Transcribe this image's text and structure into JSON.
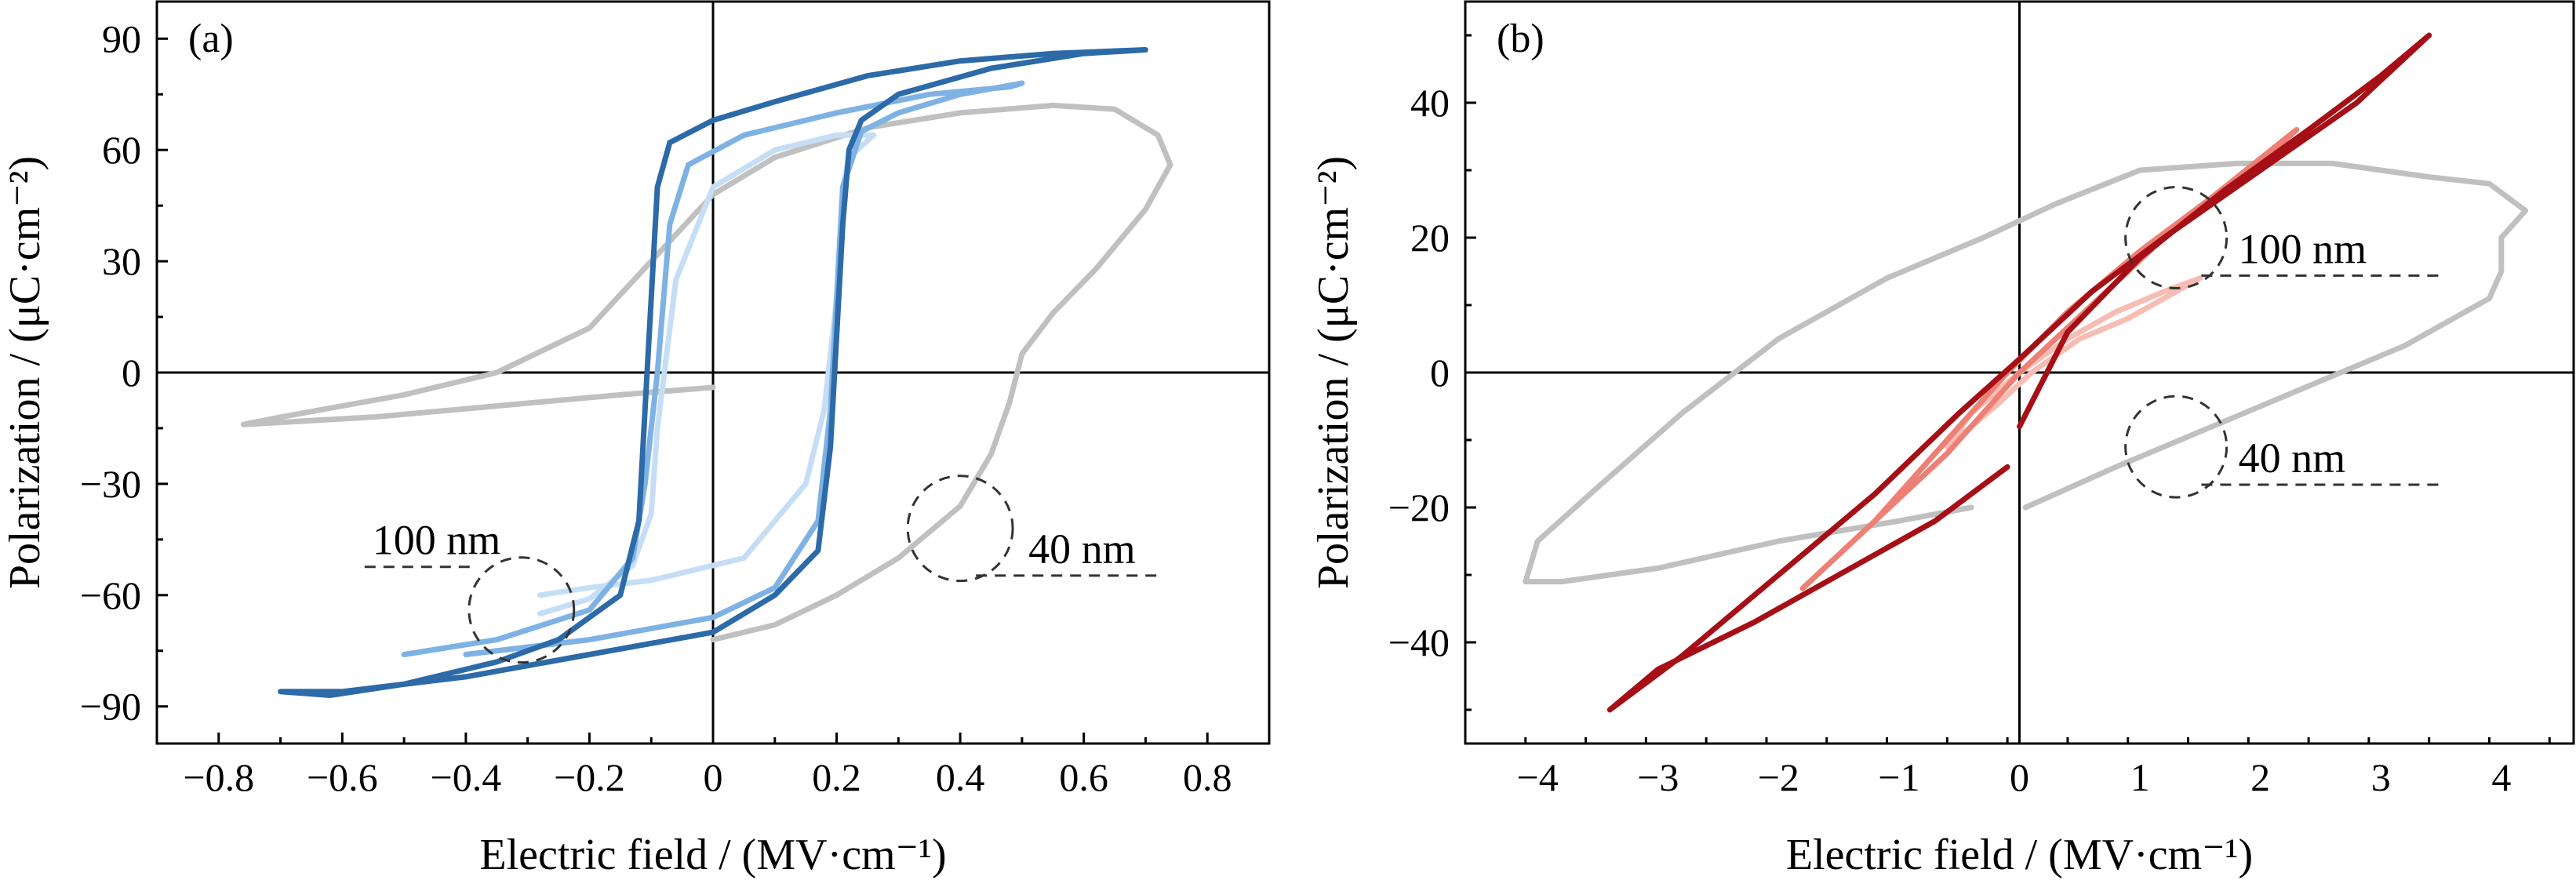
{
  "chart_data": [
    {
      "type": "line",
      "panel_label": "(a)",
      "xlabel": "Electric field / (MV·cm⁻¹)",
      "ylabel": "Polarization / (μC·cm⁻²)",
      "xlim": [
        -0.9,
        0.9
      ],
      "ylim": [
        -100,
        100
      ],
      "x_ticks": [
        -0.8,
        -0.6,
        -0.4,
        -0.2,
        0,
        0.2,
        0.4,
        0.6,
        0.8
      ],
      "x_tick_labels": [
        "−0.8",
        "−0.6",
        "−0.4",
        "−0.2",
        "0",
        "0.2",
        "0.4",
        "0.6",
        "0.8"
      ],
      "y_ticks": [
        -90,
        -60,
        -30,
        0,
        30,
        60,
        90
      ],
      "y_tick_labels": [
        "−90",
        "−60",
        "−30",
        "0",
        "30",
        "60",
        "90"
      ],
      "zero_lines": true,
      "annotations": [
        {
          "text": "100 nm",
          "circle_center": [
            -0.31,
            -64
          ],
          "circle_radius_data_x": 0.085
        },
        {
          "text": "40 nm",
          "circle_center": [
            0.4,
            -42
          ],
          "circle_radius_data_x": 0.085
        }
      ],
      "series": [
        {
          "color": "#c0c0c0",
          "points": [
            [
              0.0,
              -4
            ],
            [
              -0.15,
              -6
            ],
            [
              -0.35,
              -9
            ],
            [
              -0.55,
              -12
            ],
            [
              -0.76,
              -14
            ],
            [
              -0.7,
              -12
            ],
            [
              -0.5,
              -6
            ],
            [
              -0.35,
              0
            ],
            [
              -0.2,
              12
            ],
            [
              -0.1,
              30
            ],
            [
              0.0,
              48
            ],
            [
              0.1,
              58
            ],
            [
              0.25,
              66
            ],
            [
              0.4,
              70
            ],
            [
              0.55,
              72
            ],
            [
              0.65,
              71
            ],
            [
              0.72,
              64
            ],
            [
              0.74,
              56
            ],
            [
              0.7,
              44
            ],
            [
              0.62,
              28
            ],
            [
              0.55,
              16
            ],
            [
              0.5,
              5
            ],
            [
              0.48,
              -8
            ],
            [
              0.45,
              -22
            ],
            [
              0.4,
              -36
            ],
            [
              0.3,
              -50
            ],
            [
              0.2,
              -60
            ],
            [
              0.1,
              -68
            ],
            [
              0.0,
              -72
            ]
          ]
        },
        {
          "color": "#c6def5",
          "points": [
            [
              -0.28,
              -65
            ],
            [
              -0.2,
              -61
            ],
            [
              -0.13,
              -52
            ],
            [
              -0.1,
              -38
            ],
            [
              -0.09,
              -15
            ],
            [
              -0.06,
              25
            ],
            [
              0.0,
              50
            ],
            [
              0.1,
              60
            ],
            [
              0.2,
              64
            ],
            [
              0.26,
              64
            ],
            [
              0.22,
              58
            ],
            [
              0.21,
              50
            ],
            [
              0.2,
              20
            ],
            [
              0.18,
              -10
            ],
            [
              0.15,
              -30
            ],
            [
              0.05,
              -50
            ],
            [
              -0.1,
              -56
            ],
            [
              -0.2,
              -58
            ],
            [
              -0.28,
              -60
            ]
          ]
        },
        {
          "color": "#7eb2e4",
          "points": [
            [
              -0.5,
              -76
            ],
            [
              -0.35,
              -72
            ],
            [
              -0.2,
              -64
            ],
            [
              -0.13,
              -50
            ],
            [
              -0.11,
              -30
            ],
            [
              -0.09,
              0
            ],
            [
              -0.07,
              40
            ],
            [
              -0.04,
              56
            ],
            [
              0.05,
              64
            ],
            [
              0.2,
              70
            ],
            [
              0.35,
              75
            ],
            [
              0.48,
              77
            ],
            [
              0.5,
              78
            ],
            [
              0.4,
              75
            ],
            [
              0.3,
              70
            ],
            [
              0.24,
              65
            ],
            [
              0.21,
              50
            ],
            [
              0.2,
              20
            ],
            [
              0.19,
              -10
            ],
            [
              0.17,
              -40
            ],
            [
              0.1,
              -58
            ],
            [
              0.0,
              -66
            ],
            [
              -0.2,
              -72
            ],
            [
              -0.4,
              -76
            ]
          ]
        },
        {
          "color": "#2c6aa8",
          "points": [
            [
              -0.7,
              -86
            ],
            [
              -0.62,
              -87
            ],
            [
              -0.5,
              -84
            ],
            [
              -0.35,
              -78
            ],
            [
              -0.25,
              -72
            ],
            [
              -0.15,
              -60
            ],
            [
              -0.12,
              -40
            ],
            [
              -0.11,
              -10
            ],
            [
              -0.1,
              20
            ],
            [
              -0.09,
              50
            ],
            [
              -0.07,
              62
            ],
            [
              0.0,
              68
            ],
            [
              0.1,
              73
            ],
            [
              0.25,
              80
            ],
            [
              0.4,
              84
            ],
            [
              0.55,
              86
            ],
            [
              0.7,
              87
            ],
            [
              0.6,
              86
            ],
            [
              0.45,
              82
            ],
            [
              0.3,
              75
            ],
            [
              0.24,
              68
            ],
            [
              0.22,
              60
            ],
            [
              0.21,
              40
            ],
            [
              0.2,
              10
            ],
            [
              0.19,
              -20
            ],
            [
              0.17,
              -48
            ],
            [
              0.1,
              -60
            ],
            [
              0.0,
              -70
            ],
            [
              -0.2,
              -76
            ],
            [
              -0.4,
              -82
            ],
            [
              -0.6,
              -86
            ],
            [
              -0.7,
              -86
            ]
          ]
        }
      ]
    },
    {
      "type": "line",
      "panel_label": "(b)",
      "xlabel": "Electric field / (MV·cm⁻¹)",
      "ylabel": "Polarization / (μC·cm⁻²)",
      "xlim": [
        -4.6,
        4.6
      ],
      "ylim": [
        -55,
        55
      ],
      "x_ticks": [
        -4,
        -3,
        -2,
        -1,
        0,
        1,
        2,
        3,
        4
      ],
      "x_tick_labels": [
        "−4",
        "−3",
        "−2",
        "−1",
        "0",
        "1",
        "2",
        "3",
        "4"
      ],
      "y_ticks": [
        -40,
        -20,
        0,
        20,
        40
      ],
      "y_tick_labels": [
        "−40",
        "−20",
        "0",
        "20",
        "40"
      ],
      "zero_lines": true,
      "annotations": [
        {
          "text": "100 nm",
          "circle_center": [
            1.3,
            20
          ],
          "circle_radius_data_x": 0.42
        },
        {
          "text": "40 nm",
          "circle_center": [
            1.3,
            -11
          ],
          "circle_radius_data_x": 0.42
        }
      ],
      "series": [
        {
          "color": "#c0c0c0",
          "points": [
            [
              0.05,
              -20
            ],
            [
              0.8,
              -14
            ],
            [
              1.6,
              -8
            ],
            [
              2.4,
              -2
            ],
            [
              3.2,
              4
            ],
            [
              3.9,
              11
            ],
            [
              4.0,
              15
            ],
            [
              4.0,
              20
            ],
            [
              4.1,
              22
            ],
            [
              4.2,
              24
            ],
            [
              3.9,
              28
            ],
            [
              3.4,
              29
            ],
            [
              2.6,
              31
            ],
            [
              1.8,
              31
            ],
            [
              1.0,
              30
            ],
            [
              0.3,
              25
            ],
            [
              -0.3,
              20
            ],
            [
              -1.1,
              14
            ],
            [
              -2.0,
              5
            ],
            [
              -2.8,
              -6
            ],
            [
              -3.5,
              -17
            ],
            [
              -4.0,
              -25
            ],
            [
              -4.1,
              -31
            ],
            [
              -3.8,
              -31
            ],
            [
              -3.0,
              -29
            ],
            [
              -2.0,
              -25
            ],
            [
              -1.0,
              -22
            ],
            [
              -0.4,
              -20
            ]
          ]
        },
        {
          "color": "#f7bcb3",
          "points": [
            [
              -0.6,
              -11
            ],
            [
              -0.2,
              -5
            ],
            [
              0.1,
              0
            ],
            [
              0.5,
              5
            ],
            [
              0.9,
              8
            ],
            [
              1.3,
              12
            ],
            [
              1.5,
              14
            ],
            [
              1.2,
              12
            ],
            [
              0.8,
              9
            ],
            [
              0.4,
              5
            ],
            [
              0.0,
              0
            ],
            [
              -0.4,
              -6
            ],
            [
              -0.6,
              -11
            ]
          ]
        },
        {
          "color": "#ee7f74",
          "points": [
            [
              -1.8,
              -32
            ],
            [
              -1.2,
              -22
            ],
            [
              -0.6,
              -10
            ],
            [
              -0.1,
              0
            ],
            [
              0.4,
              9
            ],
            [
              1.0,
              18
            ],
            [
              1.6,
              26
            ],
            [
              2.3,
              36
            ],
            [
              1.8,
              28
            ],
            [
              1.2,
              20
            ],
            [
              0.6,
              10
            ],
            [
              0.0,
              0
            ],
            [
              -0.6,
              -12
            ],
            [
              -1.2,
              -22
            ],
            [
              -1.8,
              -32
            ]
          ]
        },
        {
          "color": "#a50f15",
          "points": [
            [
              -0.1,
              -14
            ],
            [
              -0.7,
              -22
            ],
            [
              -1.5,
              -30
            ],
            [
              -2.2,
              -37
            ],
            [
              -3.0,
              -44
            ],
            [
              -3.4,
              -50
            ],
            [
              -2.8,
              -42
            ],
            [
              -2.0,
              -30
            ],
            [
              -1.2,
              -18
            ],
            [
              -0.5,
              -6
            ],
            [
              0.0,
              2
            ],
            [
              0.6,
              12
            ],
            [
              1.2,
              20
            ],
            [
              2.0,
              30
            ],
            [
              2.8,
              40
            ],
            [
              3.4,
              50
            ],
            [
              3.0,
              44
            ],
            [
              2.4,
              36
            ],
            [
              1.7,
              27
            ],
            [
              1.0,
              17
            ],
            [
              0.4,
              6
            ],
            [
              0.0,
              -8
            ]
          ]
        }
      ]
    }
  ]
}
